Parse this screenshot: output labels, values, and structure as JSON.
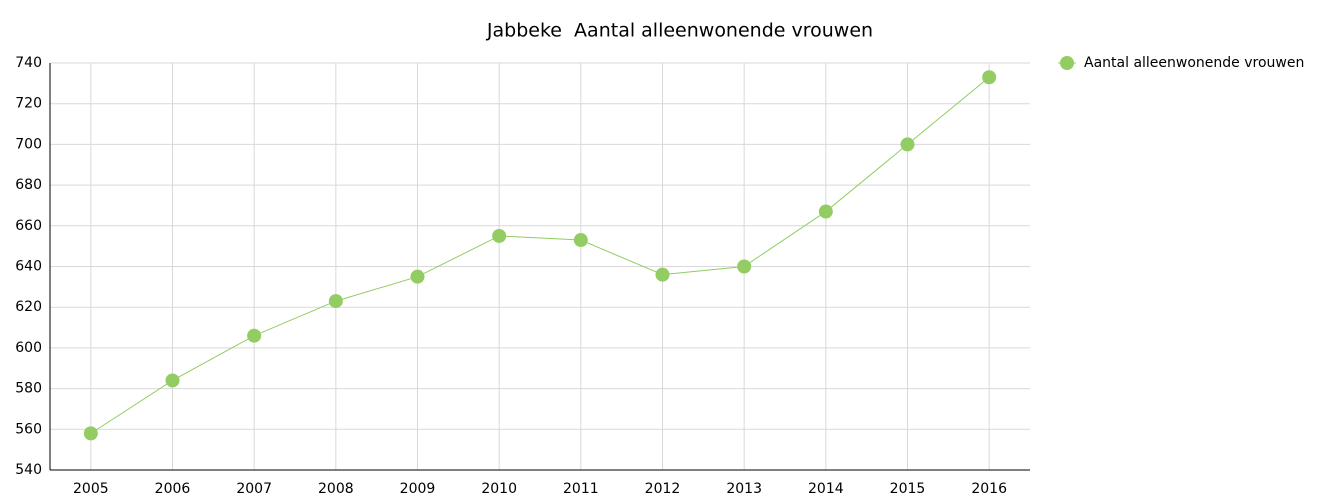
{
  "chart_data": {
    "type": "line",
    "title": "Jabbeke  Aantal alleenwonende vrouwen",
    "categories": [
      "2005",
      "2006",
      "2007",
      "2008",
      "2009",
      "2010",
      "2011",
      "2012",
      "2013",
      "2014",
      "2015",
      "2016"
    ],
    "series": [
      {
        "name": "Aantal alleenwonende vrouwen",
        "color": "#92cc63",
        "values": [
          558,
          584,
          606,
          623,
          635,
          655,
          653,
          636,
          640,
          667,
          700,
          733
        ]
      }
    ],
    "ylim": [
      540,
      740
    ],
    "yticks": [
      540,
      560,
      580,
      600,
      620,
      640,
      660,
      680,
      700,
      720,
      740
    ],
    "grid": true,
    "legend": "right"
  }
}
